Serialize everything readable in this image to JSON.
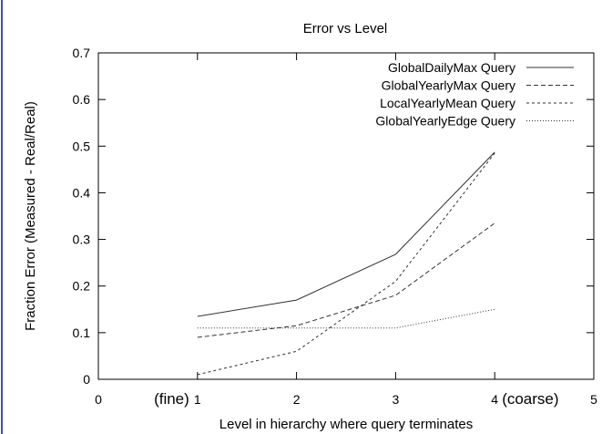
{
  "chart_data": {
    "type": "line",
    "title": "Error vs Level",
    "xlabel": "Level in hierarchy where query terminates",
    "ylabel": "Fraction Error (Measured - Real/Real)",
    "xlim": [
      0,
      5
    ],
    "ylim": [
      0,
      0.7
    ],
    "xticks": [
      0,
      1,
      2,
      3,
      4,
      5
    ],
    "yticks": [
      0,
      0.1,
      0.2,
      0.3,
      0.4,
      0.5,
      0.6,
      0.7
    ],
    "ytick_labels": [
      "0",
      "0.1",
      "0.2",
      "0.3",
      "0.4",
      "0.5",
      "0.6",
      "0.7"
    ],
    "xtick_labels": [
      "0",
      "1",
      "2",
      "3",
      "4",
      "5"
    ],
    "x_annotations": [
      {
        "x": 1,
        "text": "(fine)",
        "side": "left"
      },
      {
        "x": 4,
        "text": "(coarse)",
        "side": "right"
      }
    ],
    "legend_position": "top-right",
    "grid": false,
    "x": [
      1,
      2,
      3,
      4
    ],
    "series": [
      {
        "name": "GlobalDailyMax Query",
        "values": [
          0.135,
          0.17,
          0.268,
          0.487
        ],
        "dash": "solid"
      },
      {
        "name": "GlobalYearlyMax Query",
        "values": [
          0.09,
          0.115,
          0.18,
          0.335
        ],
        "dash": "dashed"
      },
      {
        "name": "LocalYearlyMean Query",
        "values": [
          0.01,
          0.06,
          0.21,
          0.485
        ],
        "dash": "dotted"
      },
      {
        "name": "GlobalYearlyEdge Query",
        "values": [
          0.11,
          0.11,
          0.11,
          0.15
        ],
        "dash": "fine-dotted"
      }
    ]
  }
}
